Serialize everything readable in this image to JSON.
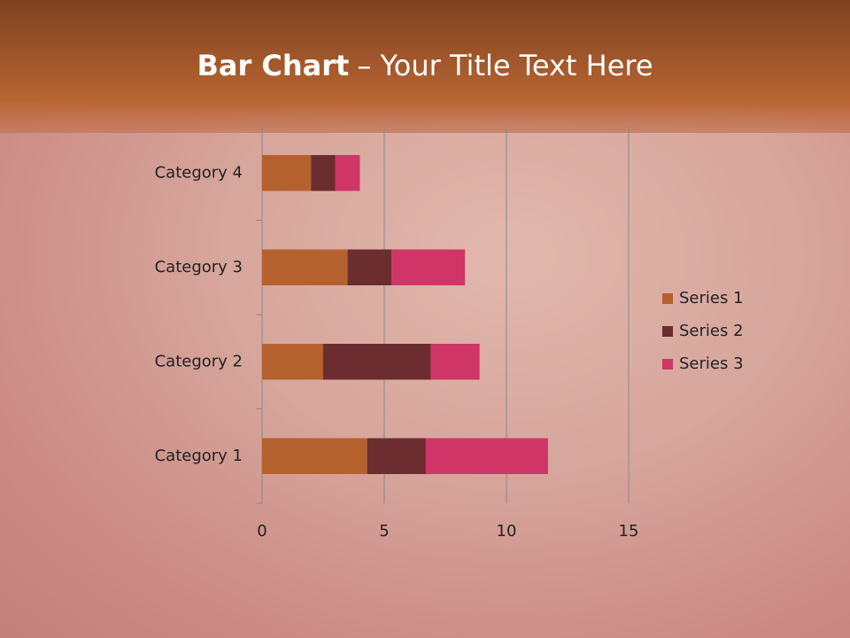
{
  "chart_data": {
    "type": "stacked-bar-horizontal",
    "title": [
      "Bar Chart",
      "– Your Title Text Here"
    ],
    "categories": [
      "Category 1",
      "Category 2",
      "Category 3",
      "Category 4"
    ],
    "series": [
      {
        "name": "Series 1",
        "color": "#b5612e",
        "values": [
          4.3,
          2.5,
          3.5,
          2
        ]
      },
      {
        "name": "Series 2",
        "color": "#6b2d2f",
        "values": [
          2.4,
          4.4,
          1.8,
          1
        ]
      },
      {
        "name": "Series 3",
        "color": "#cf3566",
        "values": [
          5,
          2,
          3,
          1
        ]
      }
    ],
    "xlim": [
      0,
      15
    ],
    "xticks": [
      0,
      5,
      10,
      15
    ],
    "grid": true,
    "legend": "right"
  }
}
